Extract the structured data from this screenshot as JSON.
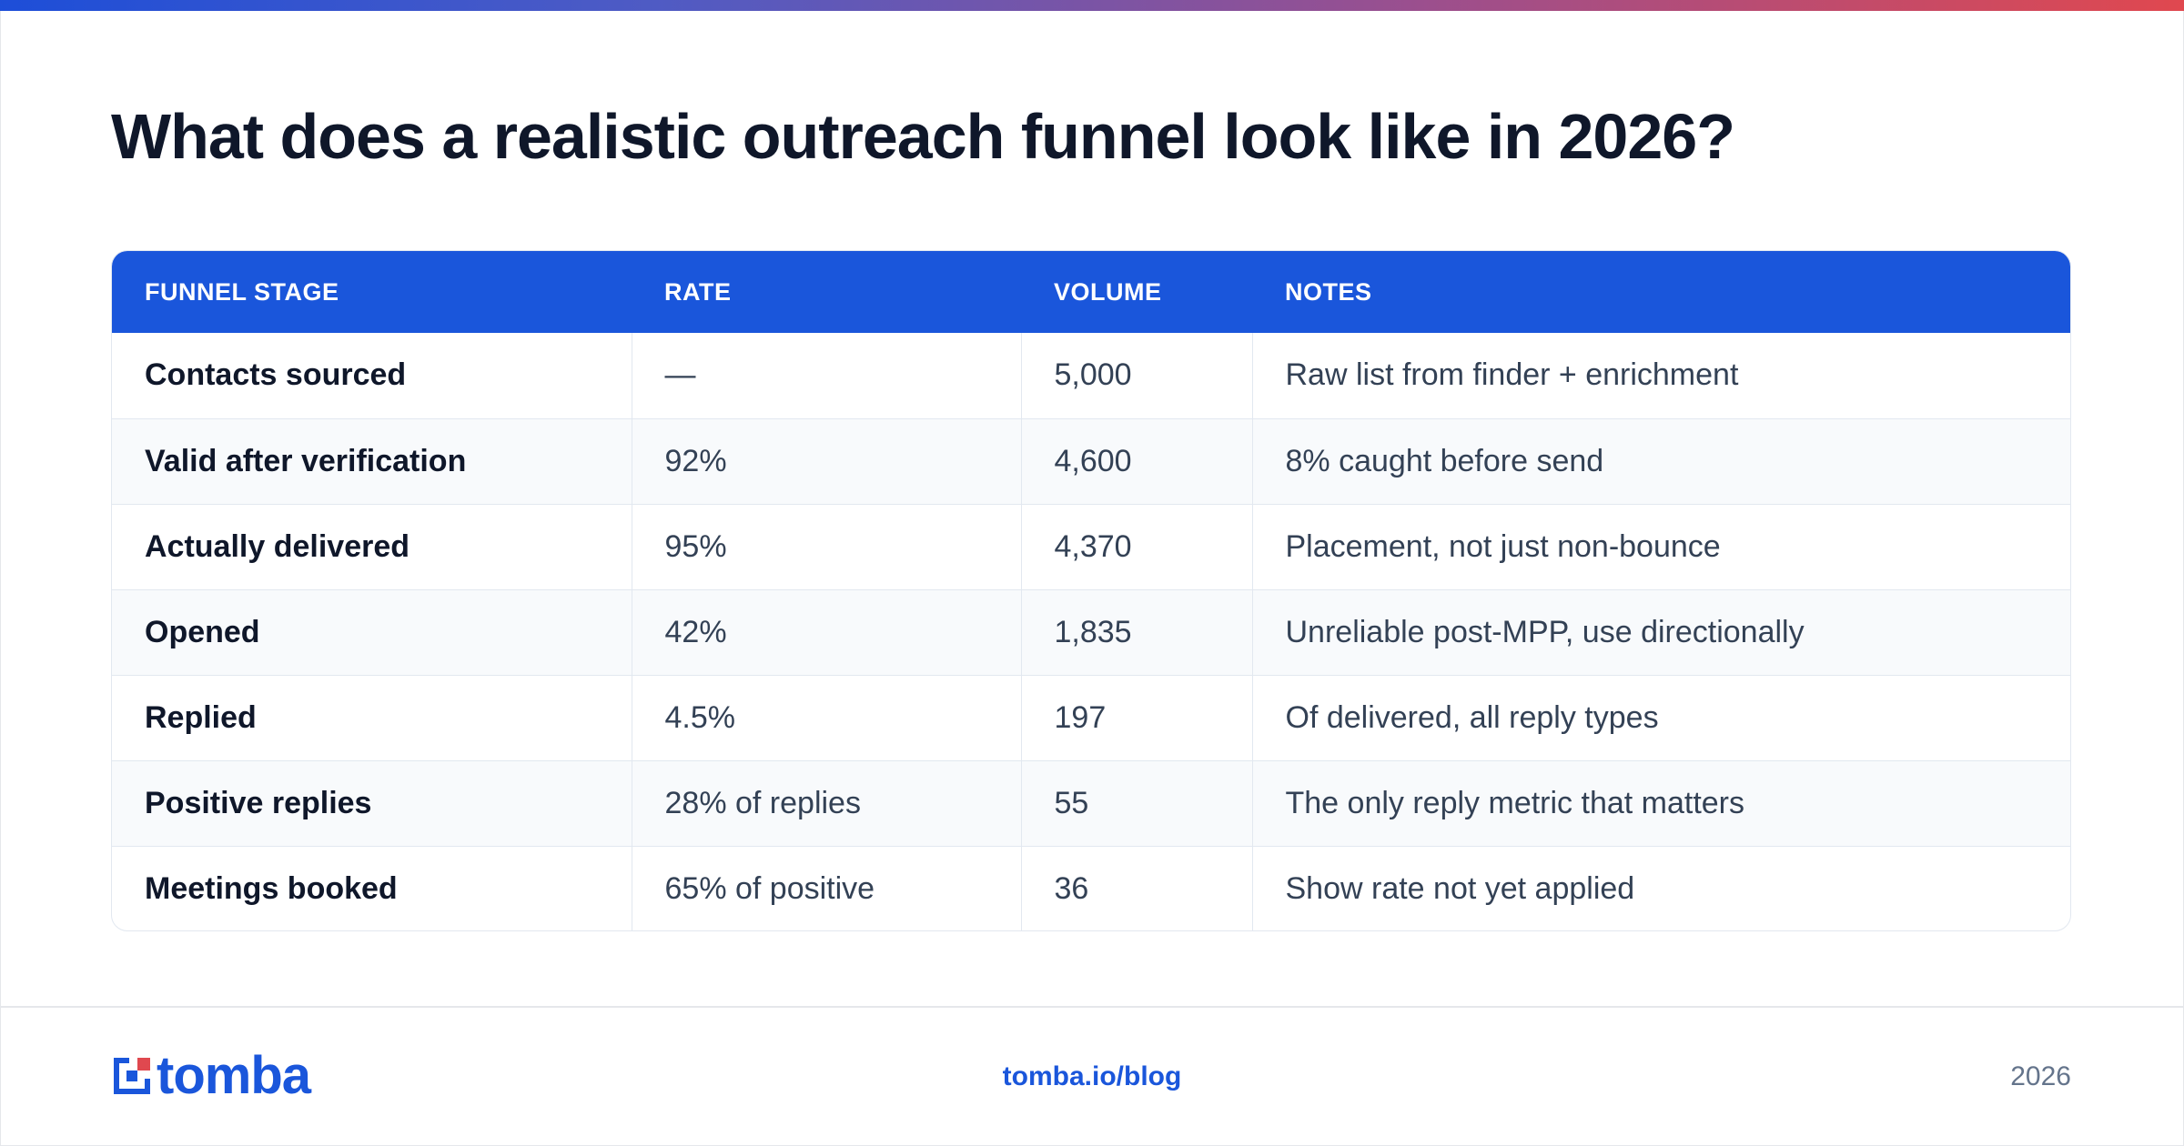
{
  "page": {
    "title": "What does a realistic outreach funnel look like in 2026?",
    "accent_color": "#1a56db",
    "gradient_colors": [
      "#1d4ed8",
      "#e0484f"
    ]
  },
  "table": {
    "headers": [
      "FUNNEL STAGE",
      "RATE",
      "VOLUME",
      "NOTES"
    ],
    "rows": [
      {
        "stage": "Contacts sourced",
        "rate": "—",
        "volume": "5,000",
        "notes": "Raw list from finder + enrichment"
      },
      {
        "stage": "Valid after verification",
        "rate": "92%",
        "volume": "4,600",
        "notes": "8% caught before send"
      },
      {
        "stage": "Actually delivered",
        "rate": "95%",
        "volume": "4,370",
        "notes": "Placement, not just non-bounce"
      },
      {
        "stage": "Opened",
        "rate": "42%",
        "volume": "1,835",
        "notes": "Unreliable post-MPP, use directionally"
      },
      {
        "stage": "Replied",
        "rate": "4.5%",
        "volume": "197",
        "notes": "Of delivered, all reply types"
      },
      {
        "stage": "Positive replies",
        "rate": "28% of replies",
        "volume": "55",
        "notes": "The only reply metric that matters"
      },
      {
        "stage": "Meetings booked",
        "rate": "65% of positive",
        "volume": "36",
        "notes": "Show rate not yet applied"
      }
    ]
  },
  "footer": {
    "logo_text": "tomba",
    "logo_icon": "tomba-logo-icon",
    "link": "tomba.io/blog",
    "year": "2026"
  }
}
